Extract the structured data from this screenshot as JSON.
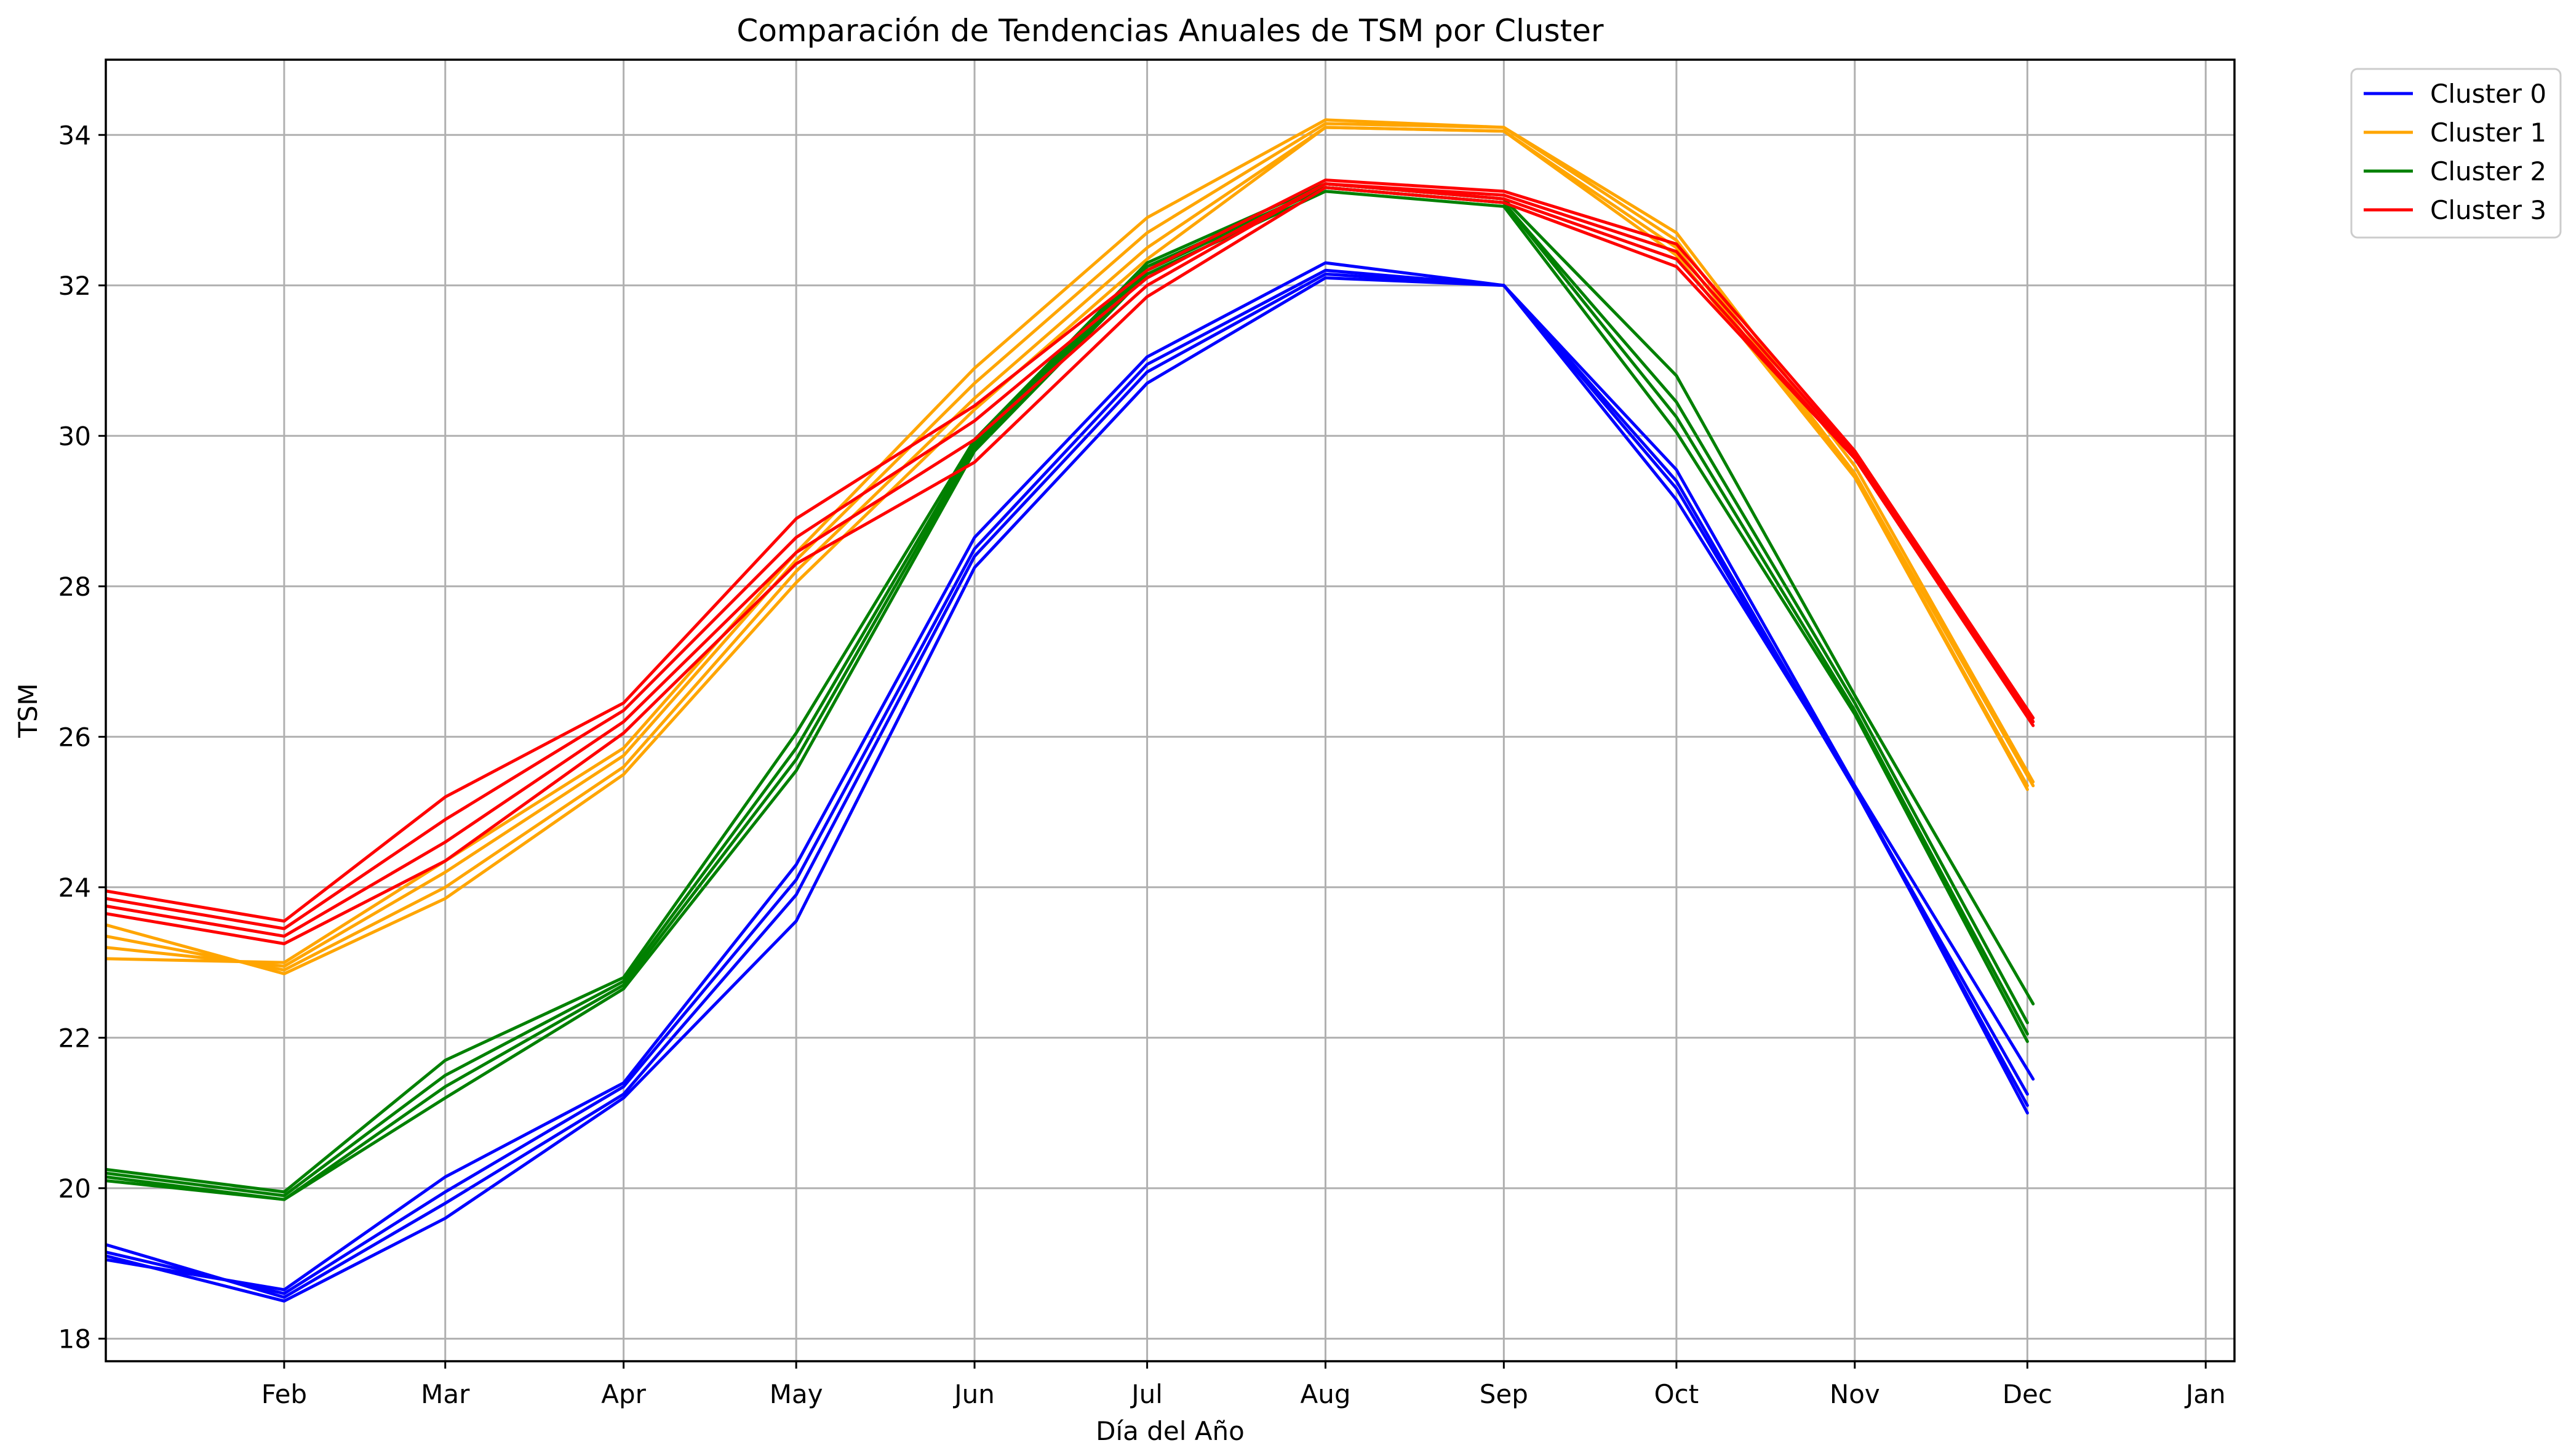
{
  "chart_data": {
    "type": "line",
    "title": "Comparación de Tendencias Anuales de TSM por Cluster",
    "xlabel": "Día del Año",
    "ylabel": "TSM",
    "x_ticks": [
      "Feb",
      "Mar",
      "Apr",
      "May",
      "Jun",
      "Jul",
      "Aug",
      "Sep",
      "Oct",
      "Nov",
      "Dec",
      "Jan"
    ],
    "x_tick_days": [
      32,
      60,
      91,
      121,
      152,
      182,
      213,
      244,
      274,
      305,
      335,
      366
    ],
    "x_days": [
      1,
      32,
      60,
      91,
      121,
      152,
      182,
      213,
      244,
      274,
      305,
      335
    ],
    "xlim": [
      1,
      371
    ],
    "y_ticks": [
      18,
      20,
      22,
      24,
      26,
      28,
      30,
      32,
      34
    ],
    "ylim": [
      17.7,
      35
    ],
    "grid": true,
    "legend_position": "outside-top-right",
    "clusters": [
      {
        "name": "Cluster 0",
        "color": "#0000ff",
        "lines": [
          {
            "x": [
              1,
              32,
              60,
              91,
              121,
              152,
              182,
              213,
              244,
              274,
              305,
              336
            ],
            "y": [
              19.05,
              18.65,
              20.15,
              21.4,
              24.3,
              28.65,
              31.05,
              32.3,
              32.0,
              29.55,
              25.35,
              21.45
            ]
          },
          {
            "x": [
              1,
              32,
              60,
              91,
              121,
              152,
              182,
              213,
              244,
              274,
              305,
              335
            ],
            "y": [
              19.15,
              18.6,
              19.95,
              21.35,
              24.1,
              28.5,
              30.95,
              32.2,
              32.0,
              29.4,
              25.3,
              21.25
            ]
          },
          {
            "x": [
              1,
              32,
              60,
              91,
              121,
              152,
              182,
              213,
              244,
              274,
              305,
              335
            ],
            "y": [
              19.25,
              18.55,
              19.8,
              21.25,
              23.9,
              28.4,
              30.85,
              32.15,
              32.0,
              29.3,
              25.3,
              21.1
            ]
          },
          {
            "x": [
              1,
              32,
              60,
              91,
              121,
              152,
              182,
              213,
              244,
              274,
              305,
              335
            ],
            "y": [
              19.1,
              18.5,
              19.6,
              21.2,
              23.55,
              28.25,
              30.7,
              32.1,
              32.0,
              29.15,
              25.35,
              21.0
            ]
          }
        ]
      },
      {
        "name": "Cluster 1",
        "color": "#ffa500",
        "lines": [
          {
            "x": [
              1,
              32,
              60,
              91,
              121,
              152,
              182,
              213,
              244,
              274,
              305,
              336
            ],
            "y": [
              23.05,
              23.0,
              24.35,
              25.85,
              28.45,
              30.9,
              32.9,
              34.2,
              34.1,
              32.7,
              29.6,
              25.4
            ]
          },
          {
            "x": [
              1,
              32,
              60,
              91,
              121,
              152,
              182,
              213,
              244,
              274,
              305,
              336
            ],
            "y": [
              23.2,
              22.95,
              24.2,
              25.75,
              28.35,
              30.7,
              32.7,
              34.15,
              34.1,
              32.6,
              29.5,
              25.35
            ]
          },
          {
            "x": [
              1,
              32,
              60,
              91,
              121,
              152,
              182,
              213,
              244,
              274,
              305,
              335
            ],
            "y": [
              23.35,
              22.9,
              24.0,
              25.6,
              28.2,
              30.5,
              32.5,
              34.1,
              34.05,
              32.5,
              29.45,
              25.35
            ]
          },
          {
            "x": [
              1,
              32,
              60,
              91,
              121,
              152,
              182,
              213,
              244,
              274,
              305,
              335
            ],
            "y": [
              23.5,
              22.85,
              23.85,
              25.5,
              28.05,
              30.35,
              32.35,
              34.1,
              34.05,
              32.4,
              29.45,
              25.3
            ]
          }
        ]
      },
      {
        "name": "Cluster 2",
        "color": "#008000",
        "lines": [
          {
            "x": [
              1,
              32,
              60,
              91,
              121,
              152,
              182,
              213,
              244,
              274,
              305,
              336
            ],
            "y": [
              20.25,
              19.95,
              21.7,
              22.8,
              26.05,
              29.95,
              32.3,
              33.35,
              33.15,
              30.8,
              26.55,
              22.45
            ]
          },
          {
            "x": [
              1,
              32,
              60,
              91,
              121,
              152,
              182,
              213,
              244,
              274,
              305,
              335
            ],
            "y": [
              20.2,
              19.9,
              21.5,
              22.75,
              25.85,
              29.9,
              32.25,
              33.3,
              33.1,
              30.45,
              26.45,
              22.2
            ]
          },
          {
            "x": [
              1,
              32,
              60,
              91,
              121,
              152,
              182,
              213,
              244,
              274,
              305,
              335
            ],
            "y": [
              20.15,
              19.85,
              21.35,
              22.7,
              25.7,
              29.85,
              32.2,
              33.3,
              33.1,
              30.25,
              26.35,
              22.05
            ]
          },
          {
            "x": [
              1,
              32,
              60,
              91,
              121,
              152,
              182,
              213,
              244,
              274,
              305,
              335
            ],
            "y": [
              20.1,
              19.85,
              21.2,
              22.65,
              25.55,
              29.8,
              32.15,
              33.25,
              33.05,
              30.05,
              26.3,
              21.95
            ]
          }
        ]
      },
      {
        "name": "Cluster 3",
        "color": "#ff0000",
        "lines": [
          {
            "x": [
              1,
              32,
              60,
              91,
              121,
              152,
              182,
              213,
              244,
              274,
              305,
              336
            ],
            "y": [
              23.95,
              23.55,
              25.2,
              26.45,
              28.9,
              30.4,
              32.2,
              33.4,
              33.25,
              32.55,
              29.8,
              26.25
            ]
          },
          {
            "x": [
              1,
              32,
              60,
              91,
              121,
              152,
              182,
              213,
              244,
              274,
              305,
              336
            ],
            "y": [
              23.85,
              23.45,
              24.9,
              26.35,
              28.65,
              30.2,
              32.1,
              33.35,
              33.2,
              32.45,
              29.75,
              26.2
            ]
          },
          {
            "x": [
              1,
              32,
              60,
              91,
              121,
              152,
              182,
              213,
              244,
              274,
              305,
              336
            ],
            "y": [
              23.75,
              23.35,
              24.6,
              26.2,
              28.45,
              29.95,
              32.0,
              33.35,
              33.15,
              32.35,
              29.7,
              26.2
            ]
          },
          {
            "x": [
              1,
              32,
              60,
              91,
              121,
              152,
              182,
              213,
              244,
              274,
              305,
              336
            ],
            "y": [
              23.65,
              23.25,
              24.35,
              26.05,
              28.3,
              29.65,
              31.85,
              33.3,
              33.1,
              32.25,
              29.7,
              26.15
            ]
          }
        ]
      }
    ]
  }
}
